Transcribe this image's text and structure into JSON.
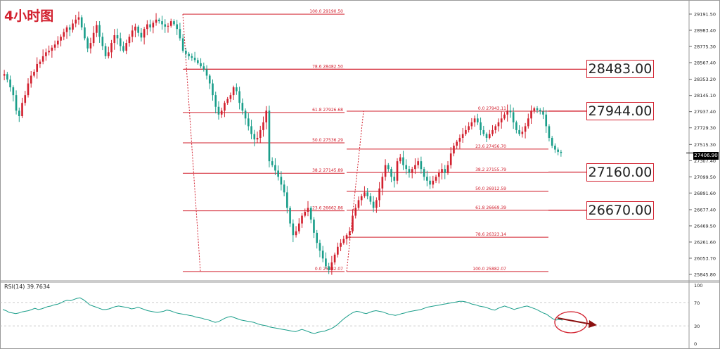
{
  "title": "4小时图",
  "last_price": "27406.90",
  "colors": {
    "bull": "#d2202e",
    "bear": "#1a9e8a",
    "fib": "#d2202e",
    "rsi": "#1a9e8a",
    "annotation": "#8b1010"
  },
  "level_boxes": [
    {
      "label": "28483.00",
      "price": 28483
    },
    {
      "label": "27944.00",
      "price": 27944
    },
    {
      "label": "27160.00",
      "price": 27160
    },
    {
      "label": "26670.00",
      "price": 26670
    }
  ],
  "fib_left": [
    {
      "label": "100.0  29190.50",
      "price": 29190.5
    },
    {
      "label": "78.6  28482.50",
      "price": 28482.5
    },
    {
      "label": "61.8  27926.68",
      "price": 27926.68
    },
    {
      "label": "50.0  27536.29",
      "price": 27536.29
    },
    {
      "label": "38.2  27145.89",
      "price": 27145.89
    },
    {
      "label": "23.6  26662.86",
      "price": 26662.86
    },
    {
      "label": "0.0  25882.07",
      "price": 25882.07
    }
  ],
  "fib_right": [
    {
      "label": "0.0  27943.11",
      "price": 27943.11
    },
    {
      "label": "23.6  27456.70",
      "price": 27456.7
    },
    {
      "label": "38.2  27155.79",
      "price": 27155.79
    },
    {
      "label": "50.0  26912.59",
      "price": 26912.59
    },
    {
      "label": "61.8  26669.39",
      "price": 26669.39
    },
    {
      "label": "78.6  26323.14",
      "price": 26323.14
    },
    {
      "label": "100.0  25882.07",
      "price": 25882.07
    }
  ],
  "rsi": {
    "label": "RSI(14) 39.7634",
    "levels": [
      "100",
      "70",
      "30",
      "0"
    ],
    "values": [
      58,
      56,
      53,
      52,
      51,
      52,
      54,
      55,
      56,
      58,
      60,
      58,
      59,
      61,
      63,
      64,
      66,
      67,
      69,
      72,
      74,
      73,
      75,
      77,
      78,
      75,
      71,
      66,
      64,
      62,
      60,
      58,
      58,
      59,
      61,
      63,
      64,
      63,
      62,
      61,
      59,
      60,
      62,
      60,
      58,
      56,
      55,
      54,
      53,
      54,
      55,
      57,
      56,
      54,
      52,
      51,
      50,
      49,
      48,
      47,
      45,
      44,
      43,
      41,
      40,
      38,
      36,
      37,
      40,
      43,
      45,
      46,
      44,
      42,
      40,
      39,
      38,
      37,
      36,
      34,
      32,
      31,
      30,
      28,
      27,
      26,
      25,
      24,
      23,
      22,
      21,
      20,
      22,
      24,
      22,
      20,
      18,
      17,
      19,
      20,
      21,
      23,
      25,
      28,
      32,
      37,
      42,
      46,
      50,
      53,
      55,
      54,
      52,
      51,
      53,
      55,
      56,
      55,
      54,
      52,
      50,
      49,
      48,
      49,
      51,
      52,
      54,
      55,
      56,
      57,
      58,
      60,
      62,
      63,
      64,
      65,
      66,
      67,
      68,
      69,
      70,
      71,
      72,
      72,
      71,
      69,
      67,
      66,
      64,
      63,
      62,
      60,
      58,
      57,
      60,
      62,
      64,
      62,
      60,
      58,
      60,
      61,
      63,
      64,
      62,
      60,
      58,
      55,
      52,
      50,
      46,
      42,
      40,
      41,
      39.76
    ]
  },
  "chart_data": {
    "type": "candlestick",
    "title": "4小时图",
    "ylim": [
      25782,
      29300
    ],
    "y_ticks": [
      "29191.50",
      "28983.40",
      "28775.30",
      "28567.40",
      "28353.20",
      "28145.10",
      "27937.40",
      "27729.30",
      "27515.30",
      "27307.40",
      "27099.50",
      "26891.60",
      "26677.40",
      "26469.50",
      "26261.60",
      "26053.70",
      "25845.80"
    ],
    "price_path": [
      28420,
      28350,
      28250,
      28150,
      27950,
      27880,
      28050,
      28150,
      28300,
      28400,
      28450,
      28550,
      28580,
      28650,
      28700,
      28720,
      28760,
      28800,
      28850,
      28900,
      28960,
      29020,
      28990,
      29070,
      29120,
      29150,
      29020,
      28880,
      28750,
      28820,
      28950,
      29050,
      28900,
      28780,
      28650,
      28700,
      28820,
      28920,
      28880,
      28780,
      28720,
      28820,
      28900,
      28980,
      29030,
      28950,
      28890,
      29000,
      29060,
      29020,
      29080,
      29120,
      29100,
      29060,
      29030,
      29040,
      29100,
      29060,
      29000,
      28880,
      28720,
      28680,
      28650,
      28630,
      28600,
      28560,
      28520,
      28480,
      28400,
      28300,
      28150,
      28000,
      27900,
      27950,
      28050,
      28100,
      28150,
      28250,
      28200,
      28050,
      27950,
      27850,
      27750,
      27650,
      27580,
      27600,
      27700,
      27800,
      27950,
      27300,
      27250,
      27180,
      27100,
      27000,
      26900,
      26700,
      26500,
      26350,
      26400,
      26500,
      26600,
      26650,
      26700,
      26550,
      26380,
      26250,
      26150,
      26050,
      25950,
      25900,
      26000,
      26100,
      26200,
      26250,
      26300,
      26350,
      26400,
      26600,
      26700,
      26800,
      26850,
      26900,
      26850,
      26780,
      26700,
      26800,
      26950,
      27100,
      27250,
      27200,
      27100,
      27050,
      27300,
      27350,
      27250,
      27200,
      27150,
      27200,
      27250,
      27300,
      27200,
      27100,
      27050,
      27000,
      27050,
      27100,
      27150,
      27200,
      27150,
      27250,
      27400,
      27500,
      27550,
      27600,
      27650,
      27700,
      27750,
      27800,
      27850,
      27800,
      27700,
      27650,
      27600,
      27650,
      27700,
      27750,
      27800,
      27850,
      27900,
      27950,
      27930,
      27800,
      27700,
      27650,
      27680,
      27750,
      27850,
      27950,
      27980,
      27960,
      27940,
      27900,
      27750,
      27600,
      27500,
      27450,
      27420,
      27406.9
    ]
  }
}
